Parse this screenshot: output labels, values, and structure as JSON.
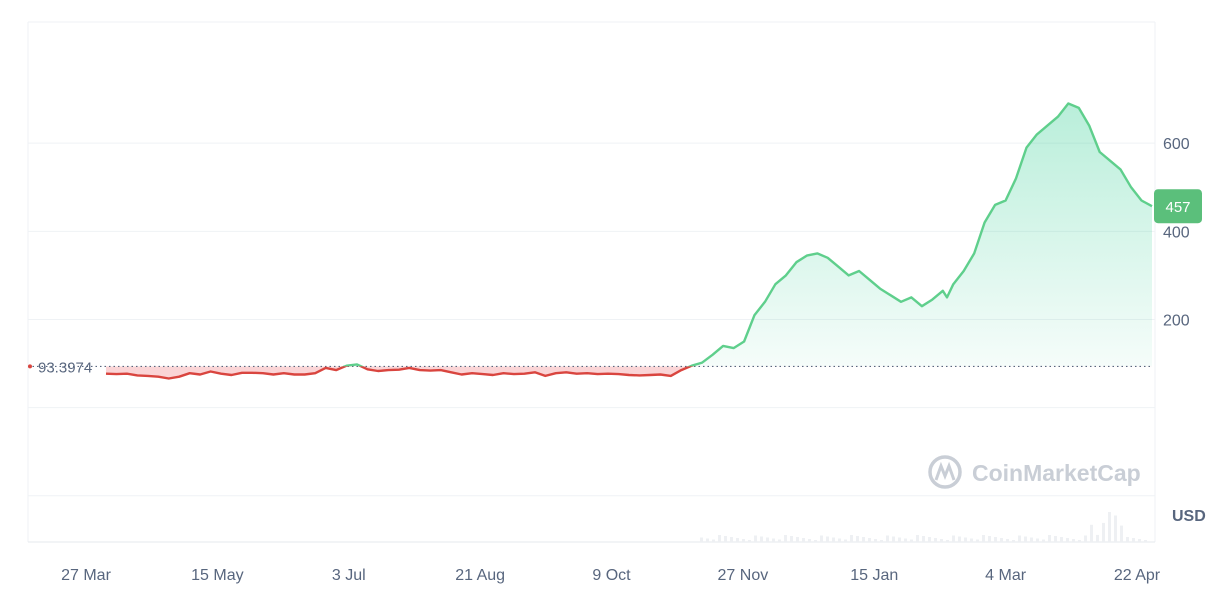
{
  "chart_data": {
    "type": "line",
    "currency": "USD",
    "baseline_label": "93.3974",
    "baseline": 93.3974,
    "current_label": "457",
    "current": 457,
    "watermark": "CoinMarketCap",
    "y_ticks": [
      200,
      400,
      600
    ],
    "ylim": [
      -305,
      875
    ],
    "x_ticks": [
      "27 Mar",
      "15 May",
      "3 Jul",
      "21 Aug",
      "9 Oct",
      "27 Nov",
      "15 Jan",
      "4 Mar",
      "22 Apr"
    ],
    "grid": true,
    "colors": {
      "up": "#16c784",
      "down": "#ea3943",
      "line_up": "#5fcf8c",
      "line_down": "#d9453f",
      "tag": "#5bbf7b"
    },
    "series": [
      {
        "x": [
          0,
          5,
          10,
          15,
          20,
          25,
          30,
          35,
          40,
          45,
          50,
          55,
          60,
          65,
          70,
          75,
          80,
          85,
          90,
          95,
          100,
          105,
          110,
          115,
          120,
          125,
          130,
          135,
          140,
          145,
          150,
          155,
          160,
          165,
          170,
          175,
          180,
          185,
          190,
          195,
          200,
          205,
          210,
          215,
          220,
          225,
          230,
          235,
          240,
          245,
          250,
          255,
          260,
          265,
          270,
          275,
          280,
          285,
          290,
          295,
          300,
          305,
          310,
          315,
          320,
          325,
          330,
          335,
          340,
          345,
          350,
          355,
          360,
          365,
          370,
          375,
          380,
          385,
          390,
          395,
          400,
          402,
          405,
          410,
          415,
          420,
          425,
          430,
          435,
          440,
          445,
          450,
          455,
          460,
          465,
          470,
          475,
          480,
          485,
          490,
          495,
          500
        ],
        "y": [
          77,
          76,
          77,
          73,
          72,
          70,
          66,
          70,
          78,
          75,
          82,
          77,
          74,
          79,
          79,
          78,
          75,
          78,
          75,
          75,
          78,
          90,
          85,
          95,
          98,
          87,
          83,
          85,
          86,
          90,
          85,
          84,
          85,
          80,
          75,
          78,
          76,
          74,
          78,
          76,
          77,
          80,
          72,
          78,
          80,
          77,
          78,
          76,
          77,
          76,
          74,
          73,
          74,
          75,
          72,
          85,
          95,
          102,
          120,
          140,
          135,
          150,
          210,
          240,
          280,
          300,
          330,
          345,
          350,
          340,
          320,
          300,
          310,
          290,
          270,
          255,
          240,
          250,
          230,
          245,
          265,
          250,
          280,
          310,
          350,
          420,
          460,
          470,
          520,
          590,
          620,
          640,
          660,
          690,
          680,
          640,
          580,
          560,
          540,
          500,
          470,
          457
        ]
      }
    ]
  }
}
